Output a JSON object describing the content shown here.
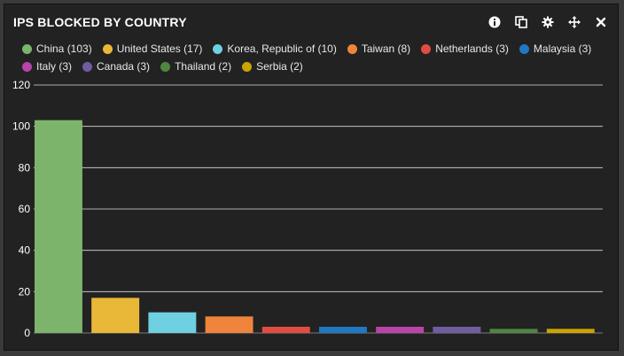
{
  "widget": {
    "title": "IPS BLOCKED BY COUNTRY",
    "toolbar": [
      {
        "name": "info-icon",
        "icon": "info"
      },
      {
        "name": "copy-icon",
        "icon": "copy"
      },
      {
        "name": "gear-icon",
        "icon": "gear"
      },
      {
        "name": "move-icon",
        "icon": "move"
      },
      {
        "name": "close-icon",
        "icon": "close"
      }
    ]
  },
  "legend": [
    {
      "label": "China (103)",
      "color": "#7db46c"
    },
    {
      "label": "United States (17)",
      "color": "#eab839"
    },
    {
      "label": "Korea, Republic of (10)",
      "color": "#6ed0e0"
    },
    {
      "label": "Taiwan (8)",
      "color": "#ef843c"
    },
    {
      "label": "Netherlands (3)",
      "color": "#e24d42"
    },
    {
      "label": "Malaysia (3)",
      "color": "#1f78c1"
    },
    {
      "label": "Italy (3)",
      "color": "#ba43a9"
    },
    {
      "label": "Canada (3)",
      "color": "#705da0"
    },
    {
      "label": "Thailand (2)",
      "color": "#508642"
    },
    {
      "label": "Serbia (2)",
      "color": "#cca300"
    }
  ],
  "chart_data": {
    "type": "bar",
    "categories": [
      "China",
      "United States",
      "Korea, Republic of",
      "Taiwan",
      "Netherlands",
      "Malaysia",
      "Italy",
      "Canada",
      "Thailand",
      "Serbia"
    ],
    "values": [
      103,
      17,
      10,
      8,
      3,
      3,
      3,
      3,
      2,
      2
    ],
    "colors": [
      "#7db46c",
      "#eab839",
      "#6ed0e0",
      "#ef843c",
      "#e24d42",
      "#1f78c1",
      "#ba43a9",
      "#705da0",
      "#508642",
      "#cca300"
    ],
    "ylim": [
      0,
      120
    ],
    "yticks": [
      0,
      20,
      40,
      60,
      80,
      100,
      120
    ],
    "grid": true,
    "legend_position": "top"
  }
}
